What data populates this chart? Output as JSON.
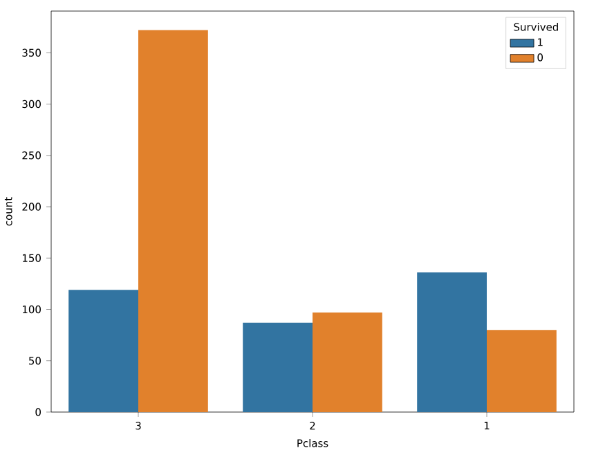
{
  "chart_data": {
    "type": "bar",
    "xlabel": "Pclass",
    "ylabel": "count",
    "legend_title": "Survived",
    "categories": [
      "3",
      "2",
      "1"
    ],
    "series": [
      {
        "name": "1",
        "color": "#3274a1",
        "values": [
          119,
          87,
          136
        ]
      },
      {
        "name": "0",
        "color": "#e1812c",
        "values": [
          372,
          97,
          80
        ]
      }
    ],
    "ylim": [
      0,
      390.6
    ],
    "yticks": [
      0,
      50,
      100,
      150,
      200,
      250,
      300,
      350
    ],
    "grid": false,
    "legend": "top right"
  }
}
